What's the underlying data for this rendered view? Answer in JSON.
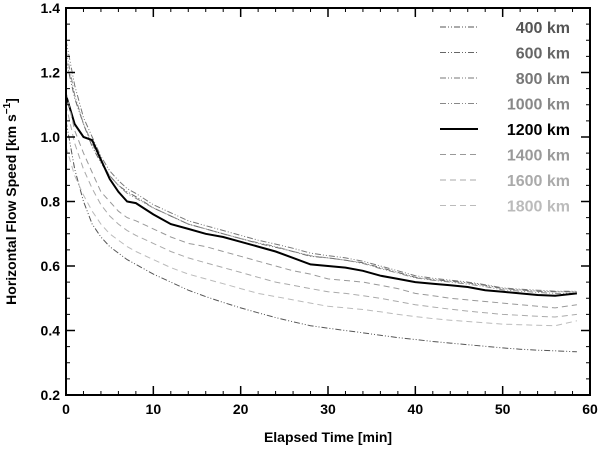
{
  "chart_data": {
    "type": "line",
    "xlabel": "Elapsed Time   [min]",
    "ylabel": "Horizontal Flow Speed   [km s",
    "ylabel_sup": "−1",
    "ylabel_end": "]",
    "xlim": [
      0,
      60
    ],
    "ylim": [
      0.2,
      1.4
    ],
    "xticks": [
      0,
      10,
      20,
      30,
      40,
      50,
      60
    ],
    "yticks": [
      0.2,
      0.4,
      0.6,
      0.8,
      1.0,
      1.2,
      1.4
    ],
    "xtick_labels": [
      "0",
      "10",
      "20",
      "30",
      "40",
      "50",
      "60"
    ],
    "ytick_labels": [
      "0.2",
      "0.4",
      "0.6",
      "0.8",
      "1.0",
      "1.2",
      "1.4"
    ],
    "grid": false,
    "legend_position": "top-right",
    "x": [
      0,
      1,
      2,
      3,
      4,
      5,
      6,
      7,
      8,
      10,
      12,
      14,
      16,
      18,
      20,
      22,
      24,
      26,
      28,
      30,
      32,
      34,
      36,
      38,
      40,
      42,
      44,
      46,
      48,
      50,
      52,
      54,
      56,
      58.5
    ],
    "series": [
      {
        "name": "400 km",
        "color": "#555555",
        "dash": "6,2,1,2,1,2",
        "values": [
          1.05,
          0.9,
          0.8,
          0.73,
          0.69,
          0.66,
          0.64,
          0.62,
          0.605,
          0.575,
          0.55,
          0.525,
          0.505,
          0.487,
          0.47,
          0.455,
          0.44,
          0.427,
          0.415,
          0.407,
          0.4,
          0.393,
          0.385,
          0.378,
          0.372,
          0.366,
          0.361,
          0.356,
          0.351,
          0.346,
          0.342,
          0.339,
          0.337,
          0.334
        ]
      },
      {
        "name": "600 km",
        "color": "#666666",
        "dash": "6,2,1,2,1,2",
        "values": [
          1.24,
          1.12,
          1.04,
          0.97,
          0.92,
          0.88,
          0.85,
          0.83,
          0.815,
          0.78,
          0.755,
          0.73,
          0.715,
          0.7,
          0.685,
          0.67,
          0.658,
          0.645,
          0.63,
          0.625,
          0.618,
          0.61,
          0.595,
          0.58,
          0.565,
          0.558,
          0.553,
          0.548,
          0.54,
          0.53,
          0.526,
          0.522,
          0.52,
          0.52
        ]
      },
      {
        "name": "800 km",
        "color": "#777777",
        "dash": "6,2,1,2,1,2",
        "values": [
          1.3,
          1.16,
          1.06,
          1.0,
          0.94,
          0.895,
          0.865,
          0.84,
          0.825,
          0.79,
          0.765,
          0.74,
          0.725,
          0.71,
          0.695,
          0.68,
          0.668,
          0.655,
          0.64,
          0.632,
          0.625,
          0.615,
          0.6,
          0.585,
          0.57,
          0.562,
          0.556,
          0.55,
          0.542,
          0.532,
          0.528,
          0.525,
          0.522,
          0.522
        ]
      },
      {
        "name": "1000 km",
        "color": "#888888",
        "dash": "6,2,1,2,1,2",
        "values": [
          1.27,
          1.13,
          1.04,
          0.98,
          0.925,
          0.88,
          0.85,
          0.825,
          0.81,
          0.78,
          0.755,
          0.73,
          0.715,
          0.7,
          0.685,
          0.672,
          0.66,
          0.645,
          0.632,
          0.625,
          0.618,
          0.608,
          0.592,
          0.578,
          0.563,
          0.556,
          0.55,
          0.544,
          0.536,
          0.526,
          0.522,
          0.518,
          0.515,
          0.516
        ]
      },
      {
        "name": "1200 km",
        "color": "#000000",
        "dash": "",
        "values": [
          1.13,
          1.04,
          1.0,
          0.99,
          0.93,
          0.87,
          0.83,
          0.8,
          0.795,
          0.76,
          0.73,
          0.715,
          0.7,
          0.69,
          0.675,
          0.66,
          0.645,
          0.625,
          0.605,
          0.6,
          0.595,
          0.585,
          0.57,
          0.56,
          0.55,
          0.545,
          0.54,
          0.535,
          0.525,
          0.52,
          0.515,
          0.51,
          0.508,
          0.515
        ]
      },
      {
        "name": "1400 km",
        "color": "#999999",
        "dash": "6,4",
        "values": [
          1.14,
          1.02,
          0.95,
          0.89,
          0.83,
          0.8,
          0.77,
          0.75,
          0.74,
          0.715,
          0.69,
          0.67,
          0.66,
          0.645,
          0.63,
          0.615,
          0.6,
          0.585,
          0.575,
          0.56,
          0.555,
          0.55,
          0.54,
          0.53,
          0.515,
          0.508,
          0.5,
          0.495,
          0.49,
          0.485,
          0.48,
          0.475,
          0.47,
          0.48
        ]
      },
      {
        "name": "1600 km",
        "color": "#aaaaaa",
        "dash": "6,4",
        "values": [
          1.1,
          0.98,
          0.9,
          0.84,
          0.79,
          0.755,
          0.73,
          0.71,
          0.695,
          0.67,
          0.645,
          0.625,
          0.61,
          0.595,
          0.58,
          0.565,
          0.55,
          0.54,
          0.53,
          0.52,
          0.515,
          0.508,
          0.5,
          0.49,
          0.48,
          0.473,
          0.466,
          0.46,
          0.455,
          0.45,
          0.447,
          0.444,
          0.442,
          0.45
        ]
      },
      {
        "name": "1800 km",
        "color": "#bbbbbb",
        "dash": "6,4",
        "values": [
          0.97,
          0.88,
          0.82,
          0.77,
          0.73,
          0.7,
          0.68,
          0.66,
          0.645,
          0.62,
          0.595,
          0.575,
          0.56,
          0.545,
          0.53,
          0.515,
          0.505,
          0.495,
          0.485,
          0.475,
          0.47,
          0.465,
          0.458,
          0.45,
          0.443,
          0.437,
          0.432,
          0.428,
          0.424,
          0.42,
          0.418,
          0.416,
          0.415,
          0.43
        ]
      }
    ]
  }
}
